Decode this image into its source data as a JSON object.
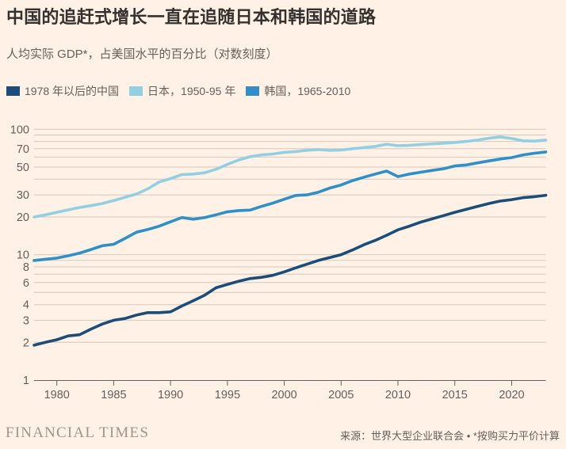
{
  "title": "中国的追赶式增长一直在追随日本和韩国的道路",
  "subtitle": "人均实际 GDP*，占美国水平的百分比（对数刻度）",
  "footer": {
    "brand": "FINANCIAL TIMES",
    "source": "来源：世界大型企业联合会 • *按购买力平价计算"
  },
  "colors": {
    "background": "#FFF1E5",
    "title_text": "#33302E",
    "muted_text": "#66605C",
    "gridline": "#D4C8BB",
    "axis": "#66605C",
    "brand_text": "#A1958A"
  },
  "chart_data": {
    "type": "line",
    "title": "中国的追赶式增长一直在追随日本和韩国的道路",
    "subtitle": "人均实际 GDP*，占美国水平的百分比（对数刻度）",
    "legend_position": "top-left",
    "grid": "horizontal-only",
    "x_axis": {
      "start_year": 1978,
      "end_year": 2023,
      "tick_labels": [
        1980,
        1985,
        1990,
        1995,
        2000,
        2005,
        2010,
        2015,
        2020
      ]
    },
    "y_axis": {
      "scale": "log",
      "range": [
        1,
        100
      ],
      "tick_labels": [
        100,
        70,
        50,
        30,
        20,
        10,
        8,
        6,
        4,
        3,
        2,
        1
      ],
      "gridline_values": [
        1,
        2,
        3,
        4,
        5,
        6,
        7,
        8,
        9,
        10,
        20,
        30,
        40,
        50,
        60,
        70,
        80,
        90,
        100
      ]
    },
    "series": [
      {
        "name": "china",
        "label": "1978 年以后的中国",
        "period": "1978-2023",
        "color": "#1A4D7A",
        "values": [
          1.9,
          2.0,
          2.1,
          2.25,
          2.3,
          2.55,
          2.8,
          3.0,
          3.1,
          3.3,
          3.45,
          3.45,
          3.5,
          3.9,
          4.3,
          4.75,
          5.45,
          5.8,
          6.15,
          6.45,
          6.6,
          6.85,
          7.3,
          7.85,
          8.4,
          9.0,
          9.5,
          10.0,
          10.9,
          12.0,
          13.0,
          14.3,
          15.8,
          16.9,
          18.2,
          19.3,
          20.5,
          21.8,
          23.0,
          24.3,
          25.6,
          26.8,
          27.5,
          28.5,
          29.0,
          29.8
        ]
      },
      {
        "name": "japan",
        "label": "日本，1950-95 年",
        "period": "1950-95",
        "color": "#92CFE3",
        "values": [
          20.0,
          20.8,
          21.8,
          22.8,
          23.8,
          24.6,
          25.6,
          27.0,
          28.7,
          30.5,
          33.5,
          38.0,
          40.5,
          43.5,
          44.0,
          45.0,
          48.0,
          52.5,
          57.0,
          60.5,
          62.5,
          63.5,
          65.5,
          66.5,
          68.0,
          69.0,
          67.8,
          68.3,
          70.0,
          71.5,
          73.0,
          76.0,
          74.0,
          74.5,
          75.5,
          76.5,
          77.5,
          78.5,
          80.0,
          82.0,
          85.0,
          87.0,
          84.5,
          81.0,
          80.5,
          82.0
        ]
      },
      {
        "name": "korea",
        "label": "韩国，1965-2010",
        "period": "1965-2010",
        "color": "#2E8FC9",
        "values": [
          9.0,
          9.2,
          9.4,
          9.8,
          10.3,
          11.0,
          11.8,
          12.1,
          13.5,
          15.1,
          15.9,
          16.9,
          18.3,
          19.8,
          19.2,
          19.8,
          20.8,
          22.0,
          22.5,
          22.7,
          24.3,
          25.8,
          27.7,
          29.7,
          30.0,
          31.5,
          34.0,
          36.0,
          39.0,
          41.5,
          44.0,
          46.5,
          42.0,
          44.0,
          45.5,
          47.0,
          48.5,
          51.0,
          52.0,
          54.0,
          56.0,
          58.0,
          59.5,
          62.5,
          64.5,
          66.0
        ]
      }
    ]
  }
}
